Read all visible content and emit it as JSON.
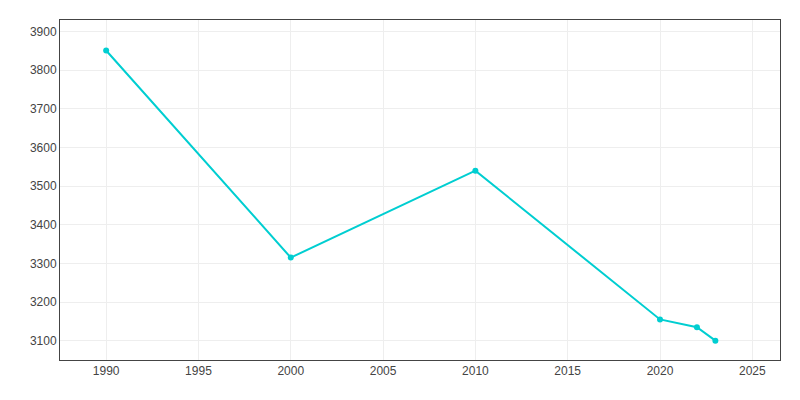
{
  "chart_data": {
    "type": "line",
    "x": [
      1990,
      2000,
      2010,
      2020,
      2022,
      2023
    ],
    "values": [
      3851,
      3315,
      3540,
      3155,
      3135,
      3100
    ],
    "color": "#00CED1",
    "marker": "circle",
    "xlim": [
      1987.5,
      2026.5
    ],
    "ylim": [
      3050,
      3930
    ],
    "xticks": [
      1990,
      1995,
      2000,
      2005,
      2010,
      2015,
      2020,
      2025
    ],
    "yticks": [
      3100,
      3200,
      3300,
      3400,
      3500,
      3600,
      3700,
      3800,
      3900
    ],
    "grid": true
  }
}
